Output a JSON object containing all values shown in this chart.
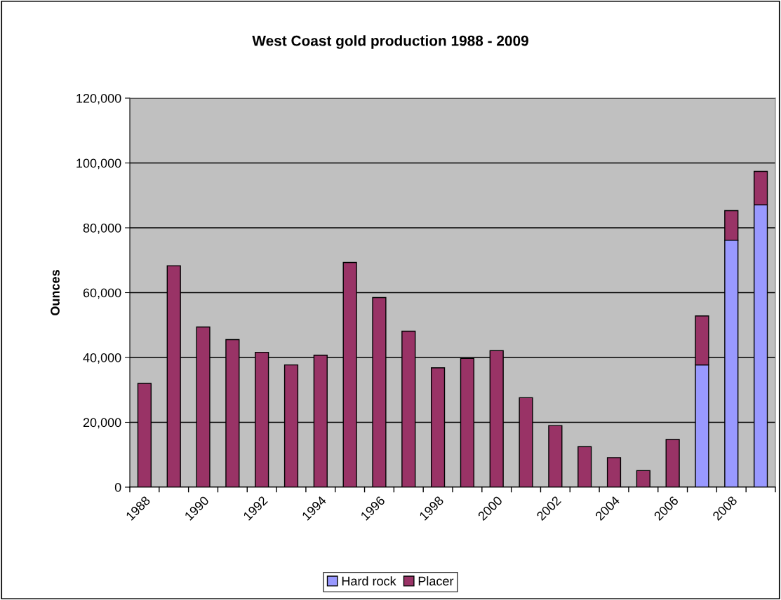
{
  "chart_data": {
    "type": "bar",
    "title": "West Coast gold production 1988 - 2009",
    "ylabel": "Ounces",
    "categories": [
      "1988",
      null,
      "1990",
      null,
      "1992",
      null,
      "1994",
      null,
      "1996",
      null,
      "1998",
      null,
      "2000",
      null,
      "2002",
      null,
      "2004",
      null,
      "2006",
      null,
      "2008",
      null
    ],
    "stacked": true,
    "series": [
      {
        "name": "Hard rock",
        "color": "#9999ff",
        "values": [
          0,
          0,
          0,
          0,
          0,
          0,
          0,
          0,
          0,
          0,
          0,
          0,
          0,
          0,
          0,
          0,
          0,
          0,
          0,
          37700,
          76200,
          87100
        ]
      },
      {
        "name": "Placer",
        "color": "#993366",
        "values": [
          32000,
          68300,
          49400,
          45500,
          41600,
          37700,
          40700,
          69300,
          58500,
          48100,
          36800,
          39700,
          42100,
          27600,
          19000,
          12500,
          9100,
          5100,
          14700,
          15100,
          9100,
          10300
        ]
      }
    ],
    "ylim": [
      0,
      120000
    ],
    "yticks": [
      {
        "value": 0,
        "label": "0"
      },
      {
        "value": 20000,
        "label": "20,000"
      },
      {
        "value": 40000,
        "label": "40,000"
      },
      {
        "value": 60000,
        "label": "60,000"
      },
      {
        "value": 80000,
        "label": "80,000"
      },
      {
        "value": 100000,
        "label": "100,000"
      },
      {
        "value": 120000,
        "label": "120,000"
      }
    ],
    "grid": "y",
    "legend": "bottom"
  }
}
